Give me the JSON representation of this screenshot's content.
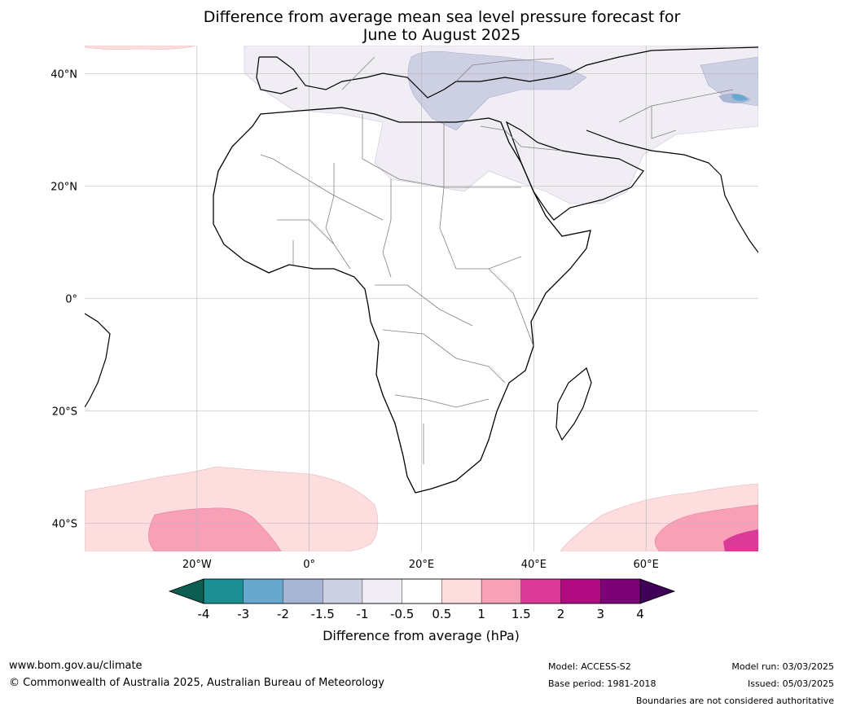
{
  "title": {
    "line1": "Difference from average mean sea level pressure forecast for",
    "line2": "June to August 2025"
  },
  "map": {
    "lat_labels": [
      "40°N",
      "20°N",
      "0°",
      "20°S",
      "40°S"
    ],
    "lon_labels": [
      "20°W",
      "0°",
      "20°E",
      "40°E",
      "60°E"
    ],
    "extent": {
      "lon_min": -40,
      "lon_max": 80,
      "lat_min": -45,
      "lat_max": 45
    },
    "grid": true
  },
  "colorbar": {
    "label": "Difference from average (hPa)",
    "ticks": [
      "-4",
      "-3",
      "-2",
      "-1.5",
      "-1",
      "-0.5",
      "0.5",
      "1",
      "1.5",
      "2",
      "3",
      "4"
    ],
    "colors": [
      "#1b8f94",
      "#68a8cf",
      "#a7b6d5",
      "#cdcfe3",
      "#f1edf4",
      "#ffffff",
      "#fdddde",
      "#f8a0b8",
      "#dc3a98",
      "#b00b81",
      "#7c0278"
    ],
    "under_color": "#0d5e52",
    "over_color": "#3f0057"
  },
  "footer": {
    "website": "www.bom.gov.au/climate",
    "copyright": "© Commonwealth of Australia 2025, Australian Bureau of Meteorology",
    "model": "Model: ACCESS-S2",
    "base_period": "Base period: 1981-2018",
    "model_run": "Model run: 03/03/2025",
    "issued": "Issued: 05/03/2025",
    "disclaimer": "Boundaries are not considered authoritative"
  }
}
